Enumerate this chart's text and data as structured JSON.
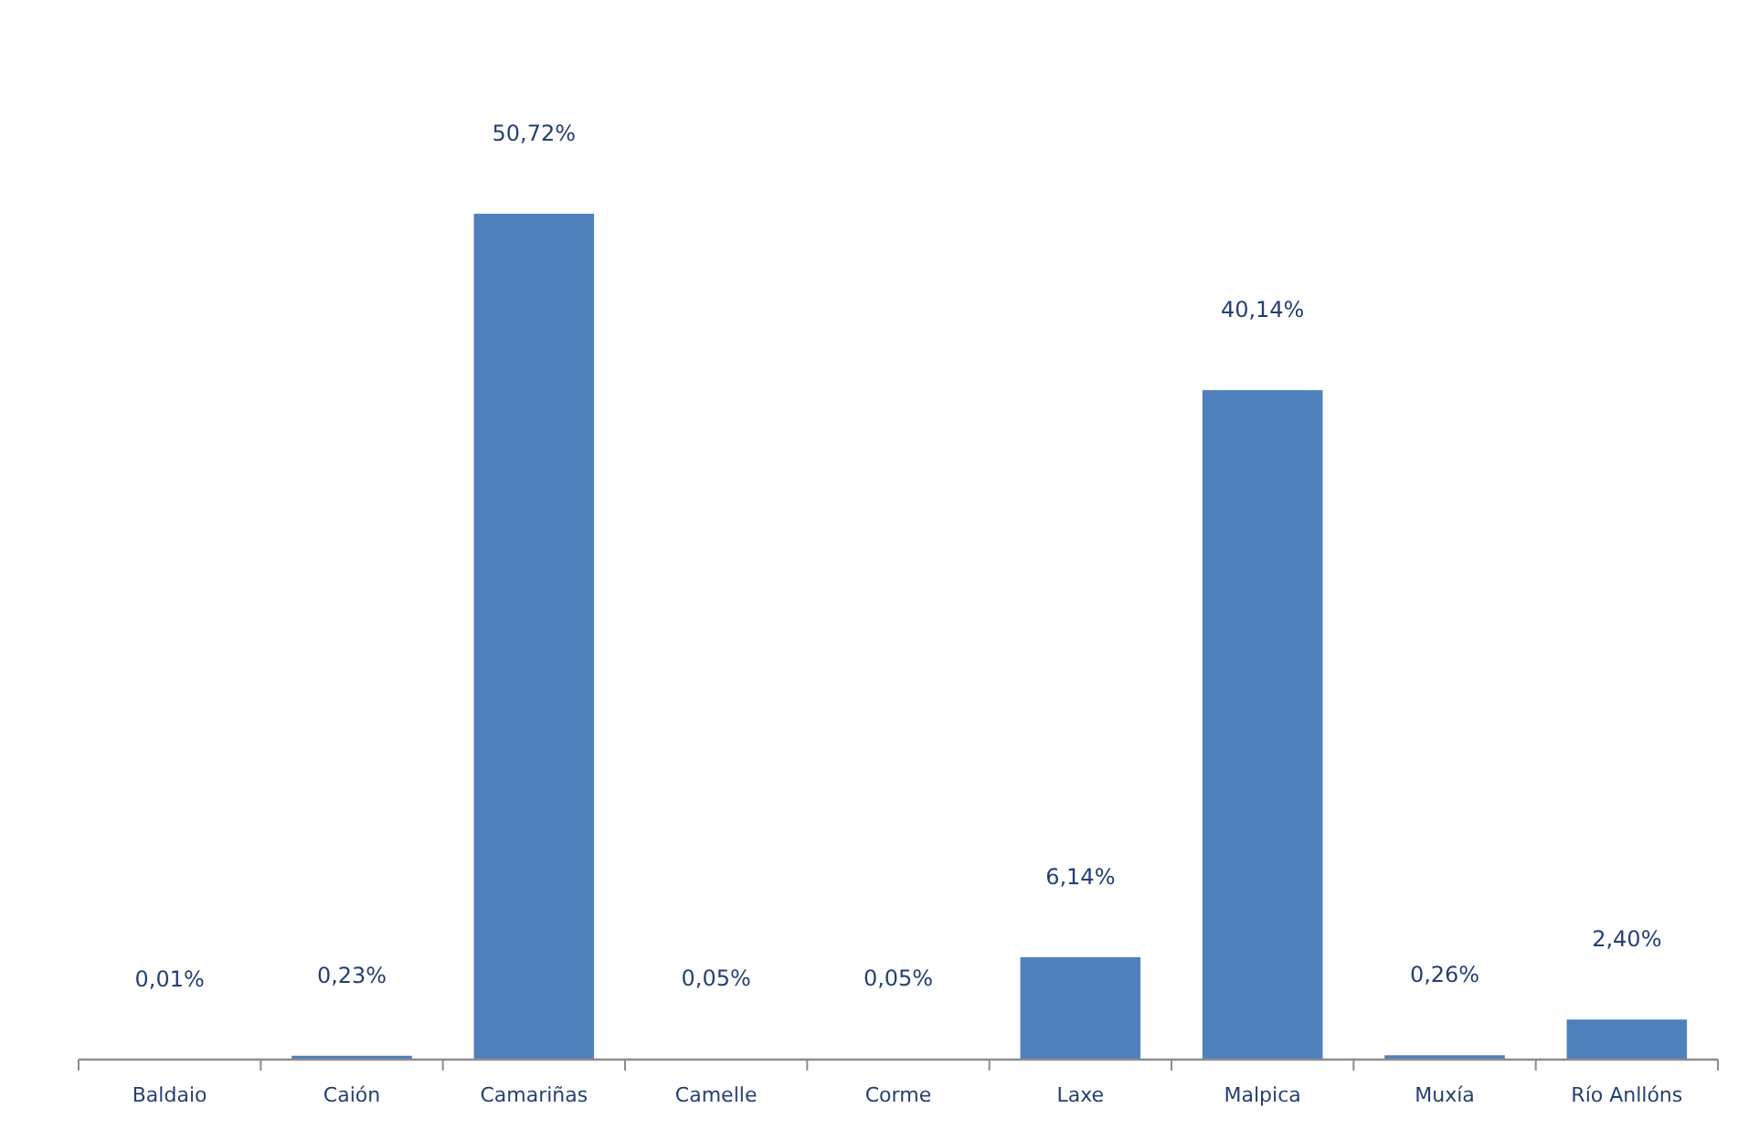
{
  "chart_data": {
    "type": "bar",
    "categories": [
      "Baldaio",
      "Caión",
      "Camariñas",
      "Camelle",
      "Corme",
      "Laxe",
      "Malpica",
      "Muxía",
      "Río Anllóns"
    ],
    "values": [
      0.01,
      0.23,
      50.72,
      0.05,
      0.05,
      6.14,
      40.14,
      0.26,
      2.4
    ],
    "value_labels": [
      "0,01%",
      "0,23%",
      "50,72%",
      "0,05%",
      "0,05%",
      "6,14%",
      "40,14%",
      "0,26%",
      "2,40%"
    ],
    "color": "#4f81bd"
  }
}
